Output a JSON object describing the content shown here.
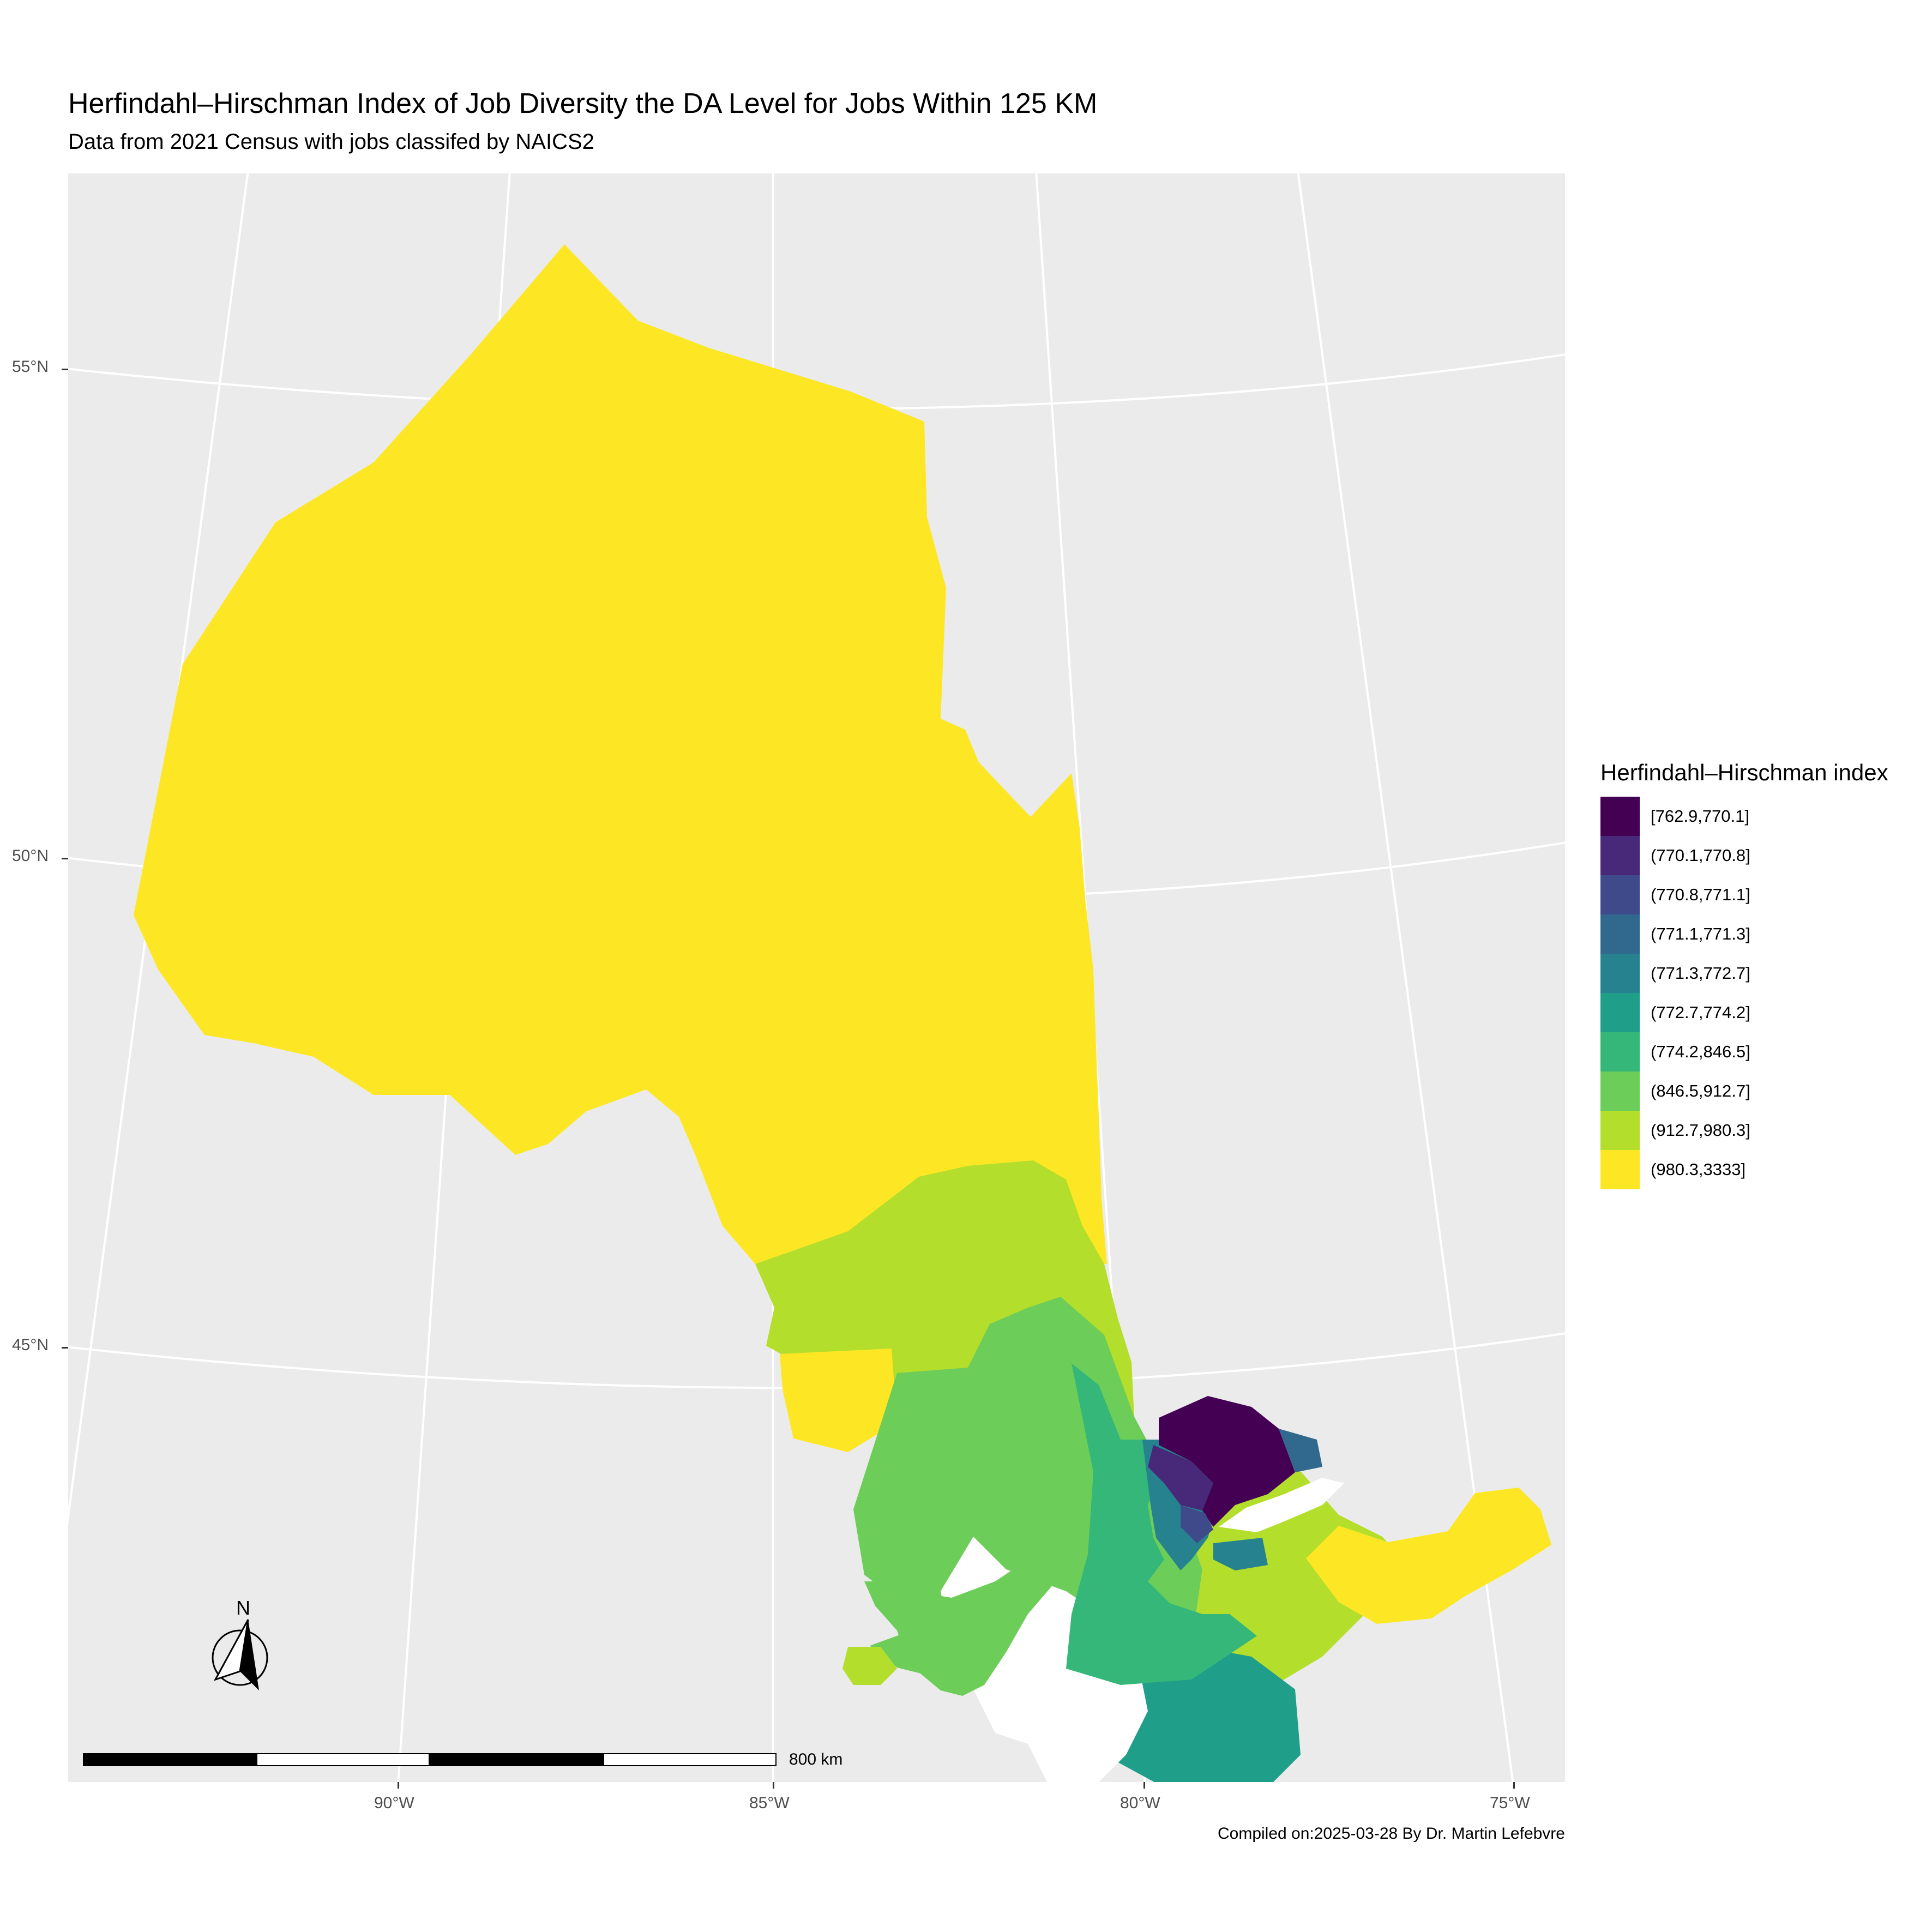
{
  "title": "Herfindahl–Hirschman Index of Job Diversity the DA Level for Jobs Within 125 KM",
  "subtitle": "Data from 2021 Census with jobs classifed by NAICS2",
  "caption": "Compiled on:2025-03-28 By Dr. Martin Lefebvre",
  "axes": {
    "latitude_labels": [
      "55°N",
      "50°N",
      "45°N"
    ],
    "longitude_labels": [
      "90°W",
      "85°W",
      "80°W",
      "75°W"
    ]
  },
  "legend": {
    "title": "Herfindahl–Hirschman index",
    "items": [
      {
        "label": "[762.9,770.1]",
        "color": "#440154"
      },
      {
        "label": "(770.1,770.8]",
        "color": "#482878"
      },
      {
        "label": "(770.8,771.1]",
        "color": "#3E4A89"
      },
      {
        "label": "(771.1,771.3]",
        "color": "#31688E"
      },
      {
        "label": "(771.3,772.7]",
        "color": "#26828E"
      },
      {
        "label": "(772.7,774.2]",
        "color": "#1F9E89"
      },
      {
        "label": "(774.2,846.5]",
        "color": "#35B779"
      },
      {
        "label": "(846.5,912.7]",
        "color": "#6DCD59"
      },
      {
        "label": "(912.7,980.3]",
        "color": "#B4DE2C"
      },
      {
        "label": "(980.3,3333]",
        "color": "#FDE725"
      }
    ]
  },
  "scale_bar": {
    "label": "800 km"
  },
  "north_arrow": {
    "label": "N",
    "icon": "north-arrow-icon"
  },
  "colors": {
    "panel_background": "#EBEBEB",
    "gridline": "#FFFFFF",
    "water": "#FFFFFF"
  }
}
